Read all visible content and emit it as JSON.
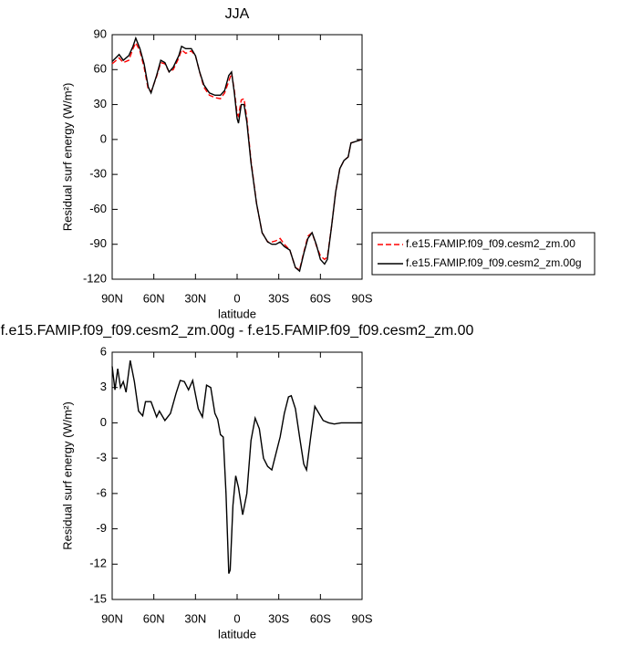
{
  "chart_data": [
    {
      "type": "line",
      "title": "JJA",
      "x_label": "latitude",
      "y_label": "Residual surf energy (W/m²)",
      "xlim": [
        90,
        -90
      ],
      "xticks": [
        {
          "value": 90,
          "label": "90N"
        },
        {
          "value": 60,
          "label": "60N"
        },
        {
          "value": 30,
          "label": "30N"
        },
        0,
        {
          "value": -30,
          "label": "30S"
        },
        {
          "value": -60,
          "label": "60S"
        },
        {
          "value": -90,
          "label": "90S"
        }
      ],
      "ylim": [
        -120,
        90
      ],
      "yticks": [
        -120,
        -90,
        -60,
        -30,
        0,
        30,
        60,
        90
      ],
      "legend": "outside-right",
      "x": [
        90,
        85,
        82,
        78,
        75,
        73,
        70,
        67,
        64,
        62,
        58,
        55,
        52,
        49,
        46,
        42,
        40,
        37,
        33,
        30,
        27,
        24,
        20,
        16,
        12,
        9,
        6,
        4,
        2,
        0,
        -1,
        -3,
        -5,
        -7,
        -10,
        -14,
        -18,
        -22,
        -25,
        -28,
        -31,
        -34,
        -38,
        -42,
        -45,
        -48,
        -51,
        -54,
        -57,
        -60,
        -63,
        -65,
        -68,
        -71,
        -74,
        -77,
        -80,
        -82,
        -90
      ],
      "series": [
        {
          "name": "f.e15.FAMIP.f09_f09.cesm2_zm.00",
          "color": "#ff0000",
          "dashed": true,
          "values": [
            65,
            70,
            66,
            68,
            78,
            83,
            76,
            62,
            43,
            41,
            54,
            66,
            65,
            58,
            60,
            70,
            77,
            74,
            76,
            72,
            58,
            45,
            38,
            36,
            35,
            40,
            50,
            57,
            42,
            22,
            20,
            34,
            35,
            18,
            -18,
            -55,
            -80,
            -88,
            -88,
            -87,
            -85,
            -90,
            -95,
            -110,
            -112,
            -97,
            -83,
            -80,
            -91,
            -100,
            -103,
            -101,
            -75,
            -45,
            -25,
            -18,
            -15,
            -3,
            0
          ]
        },
        {
          "name": "f.e15.FAMIP.f09_f09.cesm2_zm.00g",
          "color": "#000000",
          "dashed": false,
          "values": [
            67,
            73,
            68,
            72,
            80,
            87,
            78,
            65,
            45,
            40,
            55,
            68,
            66,
            58,
            62,
            72,
            80,
            78,
            78,
            72,
            58,
            47,
            40,
            38,
            38,
            42,
            55,
            58,
            40,
            18,
            14,
            30,
            30,
            15,
            -20,
            -55,
            -80,
            -88,
            -90,
            -90,
            -88,
            -92,
            -95,
            -110,
            -113,
            -98,
            -85,
            -80,
            -90,
            -103,
            -107,
            -103,
            -75,
            -45,
            -25,
            -18,
            -15,
            -3,
            0
          ]
        }
      ]
    },
    {
      "type": "line",
      "title": "f.e15.FAMIP.f09_f09.cesm2_zm.00g - f.e15.FAMIP.f09_f09.cesm2_zm.00",
      "x_label": "latitude",
      "y_label": "Residual surf energy (W/m²)",
      "xlim": [
        90,
        -90
      ],
      "xticks": [
        {
          "value": 90,
          "label": "90N"
        },
        {
          "value": 60,
          "label": "60N"
        },
        {
          "value": 30,
          "label": "30N"
        },
        0,
        {
          "value": -30,
          "label": "30S"
        },
        {
          "value": -60,
          "label": "60S"
        },
        {
          "value": -90,
          "label": "90S"
        }
      ],
      "ylim": [
        -15,
        6
      ],
      "yticks": [
        -15,
        -12,
        -9,
        -6,
        -3,
        0,
        3,
        6
      ],
      "color": "#000000",
      "x": [
        90,
        88,
        86,
        84,
        82,
        80,
        77,
        74,
        71,
        68,
        66,
        62,
        58,
        56,
        52,
        48,
        44,
        41,
        38,
        35,
        32,
        28,
        25,
        22,
        19,
        16,
        14,
        12,
        10,
        8,
        6,
        5,
        3,
        1,
        -1,
        -4,
        -7,
        -10,
        -13,
        -16,
        -19,
        -22,
        -25,
        -28,
        -31,
        -34,
        -37,
        -39,
        -42,
        -45,
        -48,
        -50,
        -53,
        -56,
        -59,
        -62,
        -66,
        -70,
        -75,
        -80,
        -90
      ],
      "values": [
        4.8,
        2.8,
        4.6,
        3.0,
        3.5,
        2.6,
        5.3,
        3.5,
        1.0,
        0.6,
        1.8,
        1.8,
        0.5,
        1.0,
        0.2,
        0.8,
        2.5,
        3.6,
        3.5,
        2.8,
        3.6,
        1.2,
        0.5,
        3.2,
        3.0,
        0.8,
        0.3,
        -1.0,
        -1.2,
        -6,
        -12.8,
        -12.5,
        -7,
        -4.5,
        -5.5,
        -7.8,
        -6,
        -1.5,
        0.4,
        -0.5,
        -3.0,
        -3.7,
        -4.0,
        -2.6,
        -1.2,
        0.8,
        2.2,
        2.3,
        1.2,
        -1.2,
        -3.5,
        -4.0,
        -1.2,
        1.4,
        0.8,
        0.2,
        0,
        -0.1,
        0,
        0,
        0
      ]
    }
  ]
}
